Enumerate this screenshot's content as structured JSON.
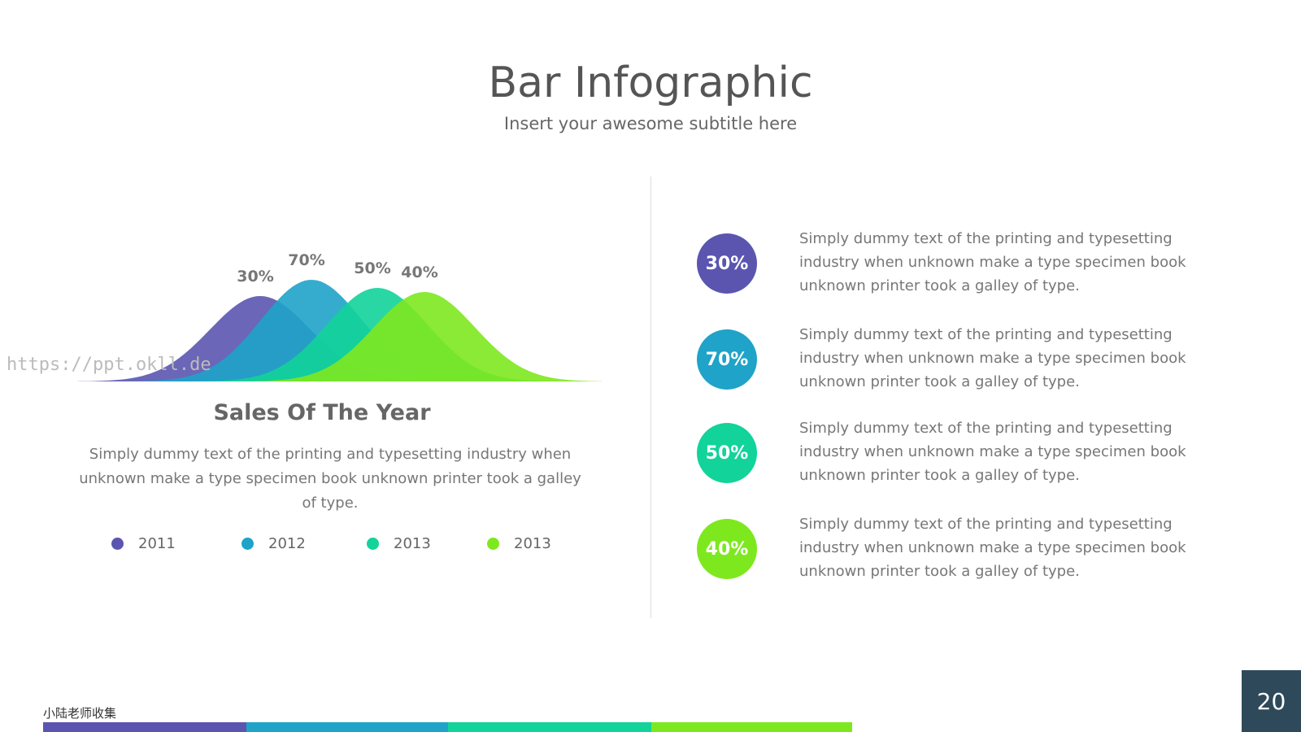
{
  "header": {
    "title": "Bar Infographic",
    "subtitle": "Insert your awesome subtitle here"
  },
  "chart_data": {
    "type": "area",
    "title": "Sales Of The Year",
    "description": "Simply dummy text of the printing and typesetting industry when unknown make a type specimen book unknown printer took a galley of type.",
    "categories": [
      "2011",
      "2012",
      "2013",
      "2013"
    ],
    "values": [
      30,
      70,
      50,
      40
    ],
    "value_labels": [
      "30%",
      "70%",
      "50%",
      "40%"
    ],
    "colors": [
      "#5b55b0",
      "#1fa3c8",
      "#12d39a",
      "#7ee81f"
    ]
  },
  "items": [
    {
      "text": "Simply dummy text of the printing and typesetting industry when unknown make a type specimen book unknown printer took a galley of type."
    },
    {
      "text": "Simply dummy text of the printing and typesetting industry when unknown make a type specimen book unknown printer took a galley of type."
    },
    {
      "text": "Simply dummy text of the printing and typesetting industry when unknown make a type specimen book unknown printer took a galley of type."
    },
    {
      "text": "Simply dummy text of the printing and typesetting industry when unknown make a type specimen book unknown printer took a galley of type."
    }
  ],
  "watermark": "https://ppt.okll.de",
  "footer": {
    "credit": "小陆老师收集",
    "page": "20"
  }
}
